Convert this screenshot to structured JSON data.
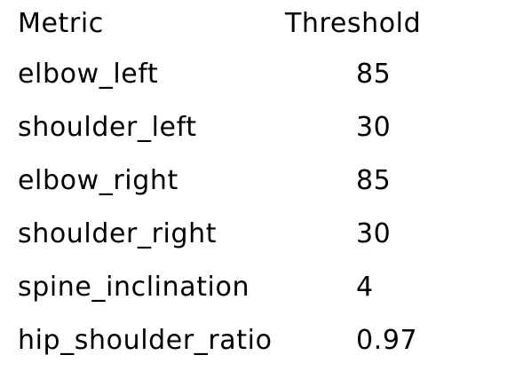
{
  "table": {
    "headers": {
      "metric": "Metric",
      "threshold": "Threshold"
    },
    "rows": [
      {
        "metric": "elbow_left",
        "threshold": "85"
      },
      {
        "metric": "shoulder_left",
        "threshold": "30"
      },
      {
        "metric": "elbow_right",
        "threshold": "85"
      },
      {
        "metric": "shoulder_right",
        "threshold": "30"
      },
      {
        "metric": "spine_inclination",
        "threshold": "4"
      },
      {
        "metric": "hip_shoulder_ratio",
        "threshold": "0.97"
      }
    ]
  }
}
